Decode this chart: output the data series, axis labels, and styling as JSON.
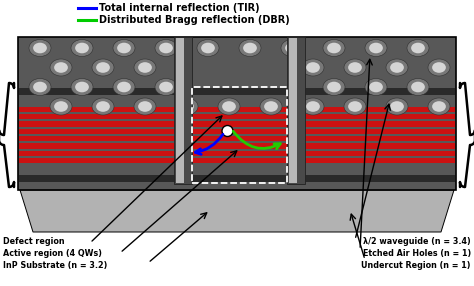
{
  "bg_color": "#ffffff",
  "legend_tir_color": "#0000ff",
  "legend_dbr_color": "#00cc00",
  "legend_tir_text": "Total internal reflection (TIR)",
  "legend_dbr_text": "Distributed Bragg reflection (DBR)",
  "ann_left": [
    "Defect region",
    "Active region (4 QWs)",
    "InP Substrate (n = 3.2)"
  ],
  "ann_right": [
    "λ/2 waveguide (n = 3.4)",
    "Etched Air Holes (n = 1)",
    "Undercut Region (n = 1)"
  ],
  "slab_dark": "#585858",
  "slab_mid": "#787878",
  "red_color": "#cc1111",
  "substrate_color": "#a8a8a8",
  "pillar_dark": "#505050",
  "pillar_light": "#c8c8c8",
  "hole_rim": "#707070",
  "hole_inner": "#d8d8d8"
}
